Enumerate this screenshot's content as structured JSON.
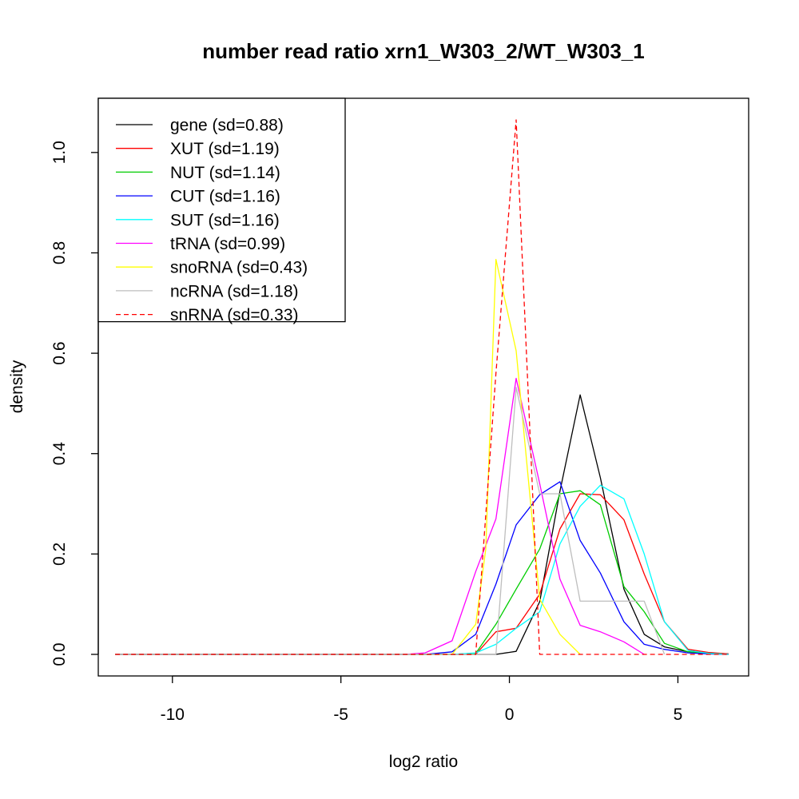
{
  "chart_data": {
    "type": "line",
    "title": "number read ratio xrn1_W303_2/WT_W303_1",
    "xlabel": "log2 ratio",
    "ylabel": "density",
    "xlim": [
      -12.2,
      7.1
    ],
    "ylim": [
      -0.043,
      1.108
    ],
    "x_ticks": [
      -10,
      -5,
      0,
      5
    ],
    "x_tick_labels": [
      "-10",
      "-5",
      "0",
      "5"
    ],
    "y_ticks": [
      0,
      0.2,
      0.4,
      0.6,
      0.8,
      1.0
    ],
    "y_tick_labels": [
      "0.0",
      "0.2",
      "0.4",
      "0.6",
      "0.8",
      "1.0"
    ],
    "grid": false,
    "legend_position": "top-left",
    "series": [
      {
        "name": "gene (sd=0.88)",
        "color": "#000000",
        "dash": "solid",
        "x": [
          -11.7,
          -3.1,
          -2.5,
          -1.7,
          -1.0,
          -0.4,
          0.2,
          0.9,
          1.5,
          2.1,
          2.7,
          3.4,
          4.0,
          4.6,
          5.3,
          5.9,
          6.5
        ],
        "y": [
          0.0,
          0.0,
          0.0,
          0.0,
          0.0,
          0.0,
          0.006,
          0.105,
          0.325,
          0.517,
          0.352,
          0.13,
          0.04,
          0.015,
          0.005,
          0.003,
          0.001
        ]
      },
      {
        "name": "XUT (sd=1.19)",
        "color": "#ff0000",
        "dash": "solid",
        "x": [
          -11.7,
          -3.1,
          -2.5,
          -1.7,
          -1.0,
          -0.4,
          0.2,
          0.9,
          1.5,
          2.1,
          2.7,
          3.4,
          4.0,
          4.6,
          5.3,
          5.9,
          6.5
        ],
        "y": [
          0.0,
          0.0,
          0.0,
          0.0,
          0.0,
          0.045,
          0.052,
          0.12,
          0.25,
          0.32,
          0.318,
          0.268,
          0.16,
          0.065,
          0.01,
          0.004,
          0.001
        ]
      },
      {
        "name": "NUT (sd=1.14)",
        "color": "#00cd00",
        "dash": "solid",
        "x": [
          -11.7,
          -3.1,
          -2.5,
          -1.7,
          -1.0,
          -0.4,
          0.2,
          0.9,
          1.5,
          2.1,
          2.7,
          3.4,
          4.0,
          4.6,
          5.3,
          5.9,
          6.5
        ],
        "y": [
          0.0,
          0.0,
          0.0,
          0.0,
          0.002,
          0.06,
          0.13,
          0.21,
          0.32,
          0.326,
          0.298,
          0.135,
          0.085,
          0.022,
          0.005,
          0.002,
          0.0
        ]
      },
      {
        "name": "CUT (sd=1.16)",
        "color": "#0000ff",
        "dash": "solid",
        "x": [
          -11.7,
          -3.1,
          -2.5,
          -1.7,
          -1.0,
          -0.4,
          0.2,
          0.9,
          1.5,
          2.1,
          2.7,
          3.4,
          4.0,
          4.6,
          5.3,
          5.9,
          6.5
        ],
        "y": [
          0.0,
          0.0,
          0.0,
          0.005,
          0.04,
          0.14,
          0.258,
          0.318,
          0.344,
          0.227,
          0.162,
          0.065,
          0.02,
          0.01,
          0.003,
          0.001,
          0.0
        ]
      },
      {
        "name": "SUT (sd=1.16)",
        "color": "#00ffff",
        "dash": "solid",
        "x": [
          -11.7,
          -3.1,
          -2.5,
          -1.7,
          -1.0,
          -0.4,
          0.2,
          0.9,
          1.5,
          2.1,
          2.7,
          3.4,
          4.0,
          4.6,
          5.3,
          5.9,
          6.5
        ],
        "y": [
          0.0,
          0.0,
          0.0,
          0.0,
          0.003,
          0.02,
          0.052,
          0.085,
          0.22,
          0.295,
          0.337,
          0.31,
          0.2,
          0.065,
          0.008,
          0.002,
          0.0
        ]
      },
      {
        "name": "tRNA (sd=0.99)",
        "color": "#ff00ff",
        "dash": "solid",
        "x": [
          -11.7,
          -3.1,
          -2.5,
          -1.7,
          -1.0,
          -0.4,
          0.2,
          0.9,
          1.5,
          2.1,
          2.7,
          3.4,
          4.0
        ],
        "y": [
          0.0,
          0.0,
          0.003,
          0.027,
          0.165,
          0.27,
          0.55,
          0.34,
          0.15,
          0.058,
          0.045,
          0.025,
          0.0
        ]
      },
      {
        "name": "snoRNA (sd=0.43)",
        "color": "#ffff00",
        "dash": "solid",
        "x": [
          -11.7,
          -1.7,
          -1.0,
          -0.7,
          -0.4,
          0.2,
          0.9,
          1.5,
          2.1
        ],
        "y": [
          0.0,
          0.0,
          0.06,
          0.21,
          0.787,
          0.605,
          0.11,
          0.04,
          0.0
        ]
      },
      {
        "name": "ncRNA (sd=1.18)",
        "color": "#bebebe",
        "dash": "solid",
        "x": [
          -11.7,
          -0.4,
          0.2,
          0.9,
          1.5,
          2.1,
          2.7,
          3.4,
          4.0,
          4.6
        ],
        "y": [
          0.0,
          0.0,
          0.532,
          0.32,
          0.32,
          0.106,
          0.106,
          0.106,
          0.106,
          0.0
        ]
      },
      {
        "name": "snRNA (sd=0.33)",
        "color": "#ff0000",
        "dash": "dashed",
        "x": [
          -11.7,
          -1.0,
          -0.4,
          0.2,
          0.9,
          6.5
        ],
        "y": [
          0.0,
          0.0,
          0.56,
          1.065,
          0.0,
          0.0
        ]
      }
    ]
  }
}
